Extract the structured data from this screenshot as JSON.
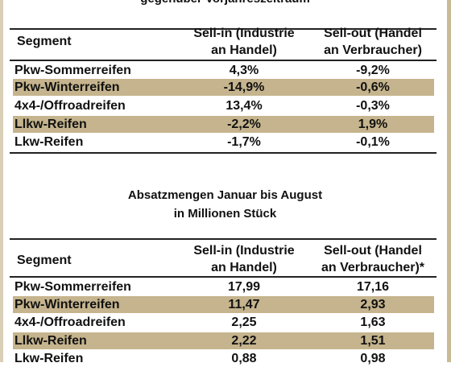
{
  "table1": {
    "title": "gegenüber Vorjahreszeitraum",
    "headers": {
      "segment": "Segment",
      "sell_in_line1": "Sell-in (Industrie",
      "sell_in_line2": "an Handel)",
      "sell_out_line1": "Sell-out (Handel",
      "sell_out_line2": "an Verbraucher)"
    },
    "rows": [
      {
        "segment": "Pkw-Sommerreifen",
        "sell_in": "4,3%",
        "sell_out": "-9,2%"
      },
      {
        "segment": "Pkw-Winterreifen",
        "sell_in": "-14,9%",
        "sell_out": "-0,6%"
      },
      {
        "segment": "4x4-/Offroadreifen",
        "sell_in": "13,4%",
        "sell_out": "-0,3%"
      },
      {
        "segment": "Llkw-Reifen",
        "sell_in": "-2,2%",
        "sell_out": "1,9%"
      },
      {
        "segment": "Lkw-Reifen",
        "sell_in": "-1,7%",
        "sell_out": "-0,1%"
      }
    ]
  },
  "table2": {
    "title_line1": "Absatzmengen Januar bis August",
    "title_line2": "in Millionen Stück",
    "headers": {
      "segment": "Segment",
      "sell_in_line1": "Sell-in (Industrie",
      "sell_in_line2": "an Handel)",
      "sell_out_line1": "Sell-out (Handel",
      "sell_out_line2": "an Verbraucher)*"
    },
    "rows": [
      {
        "segment": "Pkw-Sommerreifen",
        "sell_in": "17,99",
        "sell_out": "17,16"
      },
      {
        "segment": "Pkw-Winterreifen",
        "sell_in": "11,47",
        "sell_out": "2,93"
      },
      {
        "segment": "4x4-/Offroadreifen",
        "sell_in": "2,25",
        "sell_out": "1,63"
      },
      {
        "segment": "Llkw-Reifen",
        "sell_in": "2,22",
        "sell_out": "1,51"
      },
      {
        "segment": "Lkw-Reifen",
        "sell_in": "0,88",
        "sell_out": "0,98"
      }
    ]
  },
  "colors": {
    "row_shade": "#c5b48d",
    "frame": "#c8bb95"
  }
}
